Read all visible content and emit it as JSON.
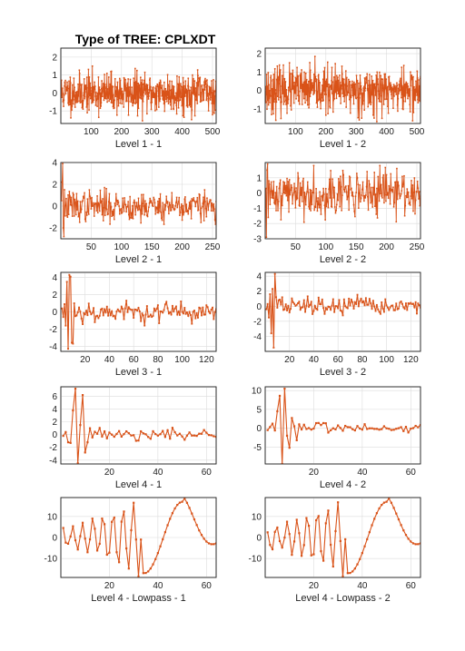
{
  "figure": {
    "title": "Type of TREE: CPLXDT"
  },
  "style": {
    "line_color": "#d95319",
    "axes_color": "#262626",
    "grid_color": "#dcdcdc",
    "background": "#ffffff"
  },
  "chart_data": [
    {
      "type": "line",
      "xlabel": "Level 1 - 1",
      "xlim": [
        0,
        512
      ],
      "ylim": [
        -1.7,
        2.5
      ],
      "xticks": [
        100,
        200,
        300,
        400,
        500
      ],
      "yticks": [
        -1,
        0,
        1,
        2
      ],
      "grid": true,
      "n": 512,
      "gen": {
        "kind": "noise",
        "seed": 11,
        "amp": 0.55,
        "clip": [
          -1.6,
          2.3
        ]
      }
    },
    {
      "type": "line",
      "xlabel": "Level 1 - 2",
      "xlim": [
        0,
        512
      ],
      "ylim": [
        -1.8,
        2.3
      ],
      "xticks": [
        100,
        200,
        300,
        400,
        500
      ],
      "yticks": [
        -1,
        0,
        1,
        2
      ],
      "grid": true,
      "n": 512,
      "gen": {
        "kind": "noise",
        "seed": 23,
        "amp": 0.6,
        "clip": [
          -1.7,
          2.2
        ]
      }
    },
    {
      "type": "line",
      "xlabel": "Level 2 - 1",
      "xlim": [
        0,
        256
      ],
      "ylim": [
        -3,
        4
      ],
      "xticks": [
        50,
        100,
        150,
        200,
        250
      ],
      "yticks": [
        -2,
        0,
        2,
        4
      ],
      "grid": true,
      "n": 256,
      "gen": {
        "kind": "noise",
        "seed": 37,
        "amp": 0.7,
        "clip": [
          -1.8,
          1.8
        ]
      },
      "early": [
        0.5,
        2.2,
        3.9,
        -2.0,
        -2.8,
        1.5,
        -0.9
      ]
    },
    {
      "type": "line",
      "xlabel": "Level 2 - 2",
      "xlim": [
        0,
        256
      ],
      "ylim": [
        -3,
        2
      ],
      "xticks": [
        50,
        100,
        150,
        200,
        250
      ],
      "yticks": [
        -3,
        -2,
        -1,
        0,
        1
      ],
      "grid": true,
      "n": 256,
      "gen": {
        "kind": "noise",
        "seed": 41,
        "amp": 0.75,
        "clip": [
          -2.0,
          1.8
        ]
      },
      "early": [
        0.3,
        -2.9,
        1.5,
        1.9,
        -1.6,
        0.8
      ]
    },
    {
      "type": "line",
      "xlabel": "Level 3 - 1",
      "xlim": [
        0,
        128
      ],
      "ylim": [
        -4.6,
        4.6
      ],
      "xticks": [
        20,
        40,
        60,
        80,
        100,
        120
      ],
      "yticks": [
        -4,
        -2,
        0,
        2,
        4
      ],
      "grid": true,
      "n": 128,
      "gen": {
        "kind": "noise",
        "seed": 53,
        "amp": 0.6,
        "clip": [
          -1.9,
          2.0
        ]
      },
      "early": [
        0.4,
        -0.6,
        0.9,
        -1.6,
        3.5,
        -4.3,
        4.3,
        4.1,
        -3.6,
        -3.7,
        1.0,
        -0.5
      ]
    },
    {
      "type": "line",
      "xlabel": "Level 3 - 2",
      "xlim": [
        0,
        128
      ],
      "ylim": [
        -6,
        4.5
      ],
      "xticks": [
        20,
        40,
        60,
        80,
        100,
        120
      ],
      "yticks": [
        -4,
        -2,
        0,
        2,
        4
      ],
      "grid": true,
      "n": 128,
      "gen": {
        "kind": "noise",
        "seed": 67,
        "amp": 0.6,
        "clip": [
          -2.0,
          2.0
        ]
      },
      "early": [
        -0.4,
        0.3,
        -1.5,
        1.6,
        -3.6,
        2.3,
        -5.5,
        4.3,
        1.2,
        -0.2,
        0.8
      ]
    },
    {
      "type": "line",
      "xlabel": "Level 4 - 1",
      "xlim": [
        0,
        64
      ],
      "ylim": [
        -4.6,
        7.5
      ],
      "xticks": [
        20,
        40,
        60
      ],
      "yticks": [
        -4,
        -2,
        0,
        2,
        4,
        6
      ],
      "grid": true,
      "n": 64,
      "gen": {
        "kind": "noise",
        "seed": 71,
        "amp": 0.45,
        "clip": [
          -1.6,
          1.2
        ]
      },
      "early": [
        -0.2,
        0.4,
        -1.2,
        -1.3,
        3.8,
        7.2,
        -4.5,
        1.5,
        6.2,
        -2.8,
        -1.2,
        1.0
      ]
    },
    {
      "type": "line",
      "xlabel": "Level 4 - 2",
      "xlim": [
        0,
        64
      ],
      "ylim": [
        -9.5,
        11
      ],
      "xticks": [
        20,
        40,
        60
      ],
      "yticks": [
        -5,
        0,
        5,
        10
      ],
      "grid": true,
      "n": 64,
      "gen": {
        "kind": "noise",
        "seed": 83,
        "amp": 0.55,
        "clip": [
          -1.8,
          1.5
        ]
      },
      "early": [
        -0.5,
        0.3,
        1.2,
        -0.6,
        4.5,
        8.6,
        -9.5,
        10.5,
        -2.0,
        -5.2,
        2.7,
        0.5,
        -3.2,
        1.0
      ]
    },
    {
      "type": "line",
      "xlabel": "Level 4 - Lowpass - 1",
      "xlim": [
        0,
        64
      ],
      "ylim": [
        -19,
        19
      ],
      "xticks": [
        20,
        40,
        60
      ],
      "yticks": [
        -10,
        0,
        10
      ],
      "grid": true,
      "n": 64,
      "gen": {
        "kind": "osc",
        "seed": 97
      }
    },
    {
      "type": "line",
      "xlabel": "Level 4 - Lowpass - 2",
      "xlim": [
        0,
        64
      ],
      "ylim": [
        -19,
        19
      ],
      "xticks": [
        20,
        40,
        60
      ],
      "yticks": [
        -10,
        0,
        10
      ],
      "grid": true,
      "n": 64,
      "gen": {
        "kind": "osc",
        "seed": 103
      }
    }
  ]
}
